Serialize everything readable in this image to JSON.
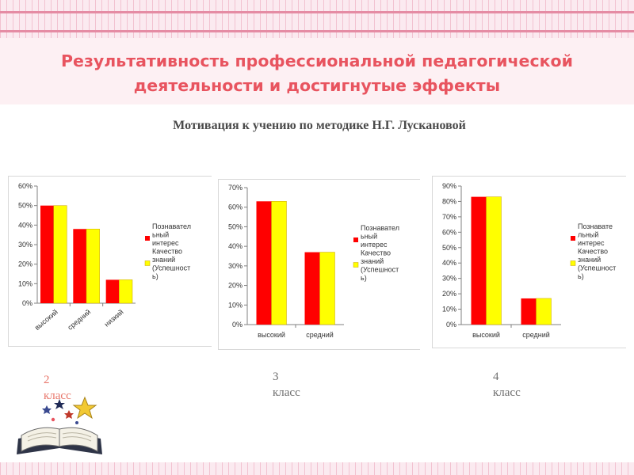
{
  "slide": {
    "title_line1": "Результативность профессиональной педагогической",
    "title_line2": "деятельности и достигнутые эффекты",
    "subtitle": "Мотивация к учению по методике Н.Г. Лускановой",
    "accent_color": "#e8545f"
  },
  "chart_data": [
    {
      "type": "bar",
      "categories": [
        "высокий",
        "средний",
        "низкий"
      ],
      "series": [
        {
          "name": "Познавательный интерес",
          "color": "#ff0000",
          "values": [
            50,
            38,
            12
          ]
        },
        {
          "name": "Качество знаний (Успешность)",
          "color": "#ffff00",
          "values": [
            50,
            38,
            12
          ]
        }
      ],
      "ylim": [
        0,
        60
      ],
      "yticks": [
        "0%",
        "10%",
        "20%",
        "30%",
        "40%",
        "50%",
        "60%"
      ],
      "legend": [
        "Познавател ьный интерес",
        "Качество знаний (Успешност ь)"
      ],
      "legend_position": "right",
      "tick_rotation": "rotated",
      "caption_line1": "2",
      "caption_line2": "класс"
    },
    {
      "type": "bar",
      "categories": [
        "высокий",
        "средний"
      ],
      "series": [
        {
          "name": "Познавательный интерес",
          "color": "#ff0000",
          "values": [
            63,
            37
          ]
        },
        {
          "name": "Качество знаний (Успешность)",
          "color": "#ffff00",
          "values": [
            63,
            37
          ]
        }
      ],
      "ylim": [
        0,
        70
      ],
      "yticks": [
        "0%",
        "10%",
        "20%",
        "30%",
        "40%",
        "50%",
        "60%",
        "70%"
      ],
      "legend": [
        "Познавател ьный интерес",
        "Качество знаний (Успешност ь)"
      ],
      "legend_position": "right",
      "tick_rotation": "horizontal",
      "caption_line1": "3",
      "caption_line2": "класс"
    },
    {
      "type": "bar",
      "categories": [
        "высокий",
        "средний"
      ],
      "series": [
        {
          "name": "Познавательный интерес",
          "color": "#ff0000",
          "values": [
            83,
            17
          ]
        },
        {
          "name": "Качество знаний (Успешность)",
          "color": "#ffff00",
          "values": [
            83,
            17
          ]
        }
      ],
      "ylim": [
        0,
        90
      ],
      "yticks": [
        "0%",
        "10%",
        "20%",
        "30%",
        "40%",
        "50%",
        "60%",
        "70%",
        "80%",
        "90%"
      ],
      "legend": [
        "Познавате льный интерес",
        "Качество знаний (Успешност ь)"
      ],
      "legend_position": "right",
      "tick_rotation": "horizontal",
      "caption_line1": "4",
      "caption_line2": "класс"
    }
  ]
}
